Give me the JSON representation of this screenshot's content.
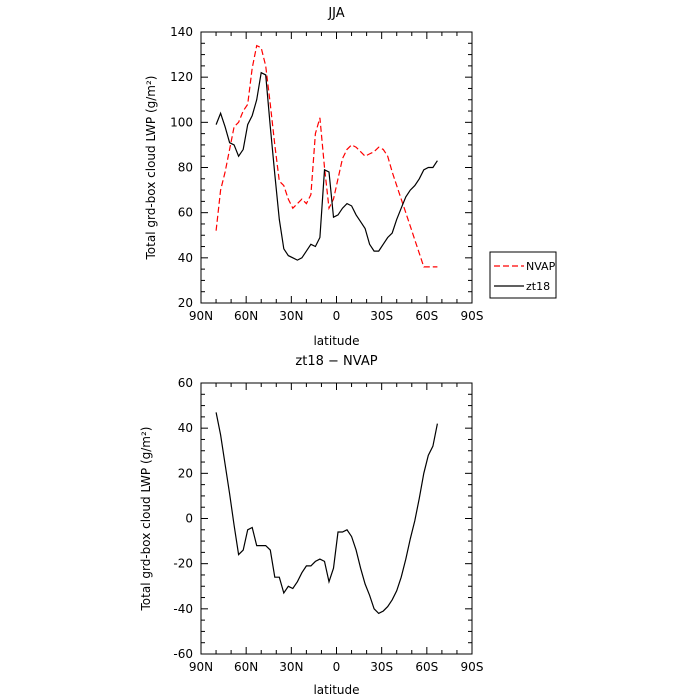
{
  "chart_data": [
    {
      "type": "line",
      "title": "JJA",
      "xlabel": "latitude",
      "ylabel": "Total grd-box cloud LWP (g/m²)",
      "xlim": [
        90,
        -90
      ],
      "ylim": [
        20,
        140
      ],
      "x_ticks": [
        90,
        60,
        30,
        0,
        -30,
        -60,
        -90
      ],
      "x_tick_labels": [
        "90N",
        "60N",
        "30N",
        "0",
        "30S",
        "60S",
        "90S"
      ],
      "y_ticks": [
        20,
        40,
        60,
        80,
        100,
        120,
        140
      ],
      "grid": false,
      "legend_position": "right-outside",
      "series": [
        {
          "name": "NVAP",
          "color": "#ff0000",
          "dash": "dashed",
          "x": [
            80,
            77,
            74,
            71,
            68,
            65,
            62,
            59,
            56,
            53,
            50,
            47,
            44,
            41,
            38,
            35,
            32,
            29,
            26,
            23,
            20,
            17,
            14,
            11,
            8,
            5,
            2,
            -1,
            -4,
            -7,
            -10,
            -13,
            -16,
            -19,
            -22,
            -25,
            -28,
            -31,
            -34,
            -37,
            -40,
            -43,
            -46,
            -49,
            -52,
            -55,
            -58,
            -61,
            -64,
            -67
          ],
          "y": [
            52,
            70,
            78,
            88,
            98,
            100,
            105,
            108,
            124,
            134,
            133,
            125,
            108,
            90,
            74,
            72,
            66,
            62,
            64,
            66,
            64,
            68,
            95,
            102,
            80,
            62,
            66,
            75,
            84,
            88,
            90,
            89,
            87,
            85,
            86,
            87,
            89,
            88,
            85,
            78,
            72,
            66,
            60,
            54,
            48,
            42,
            36,
            36,
            36,
            36
          ]
        },
        {
          "name": "zt18",
          "color": "#000000",
          "dash": "solid",
          "x": [
            80,
            77,
            74,
            71,
            68,
            65,
            62,
            59,
            56,
            53,
            50,
            47,
            44,
            41,
            38,
            35,
            32,
            29,
            26,
            23,
            20,
            17,
            14,
            11,
            8,
            5,
            2,
            -1,
            -4,
            -7,
            -10,
            -13,
            -16,
            -19,
            -22,
            -25,
            -28,
            -31,
            -34,
            -37,
            -40,
            -43,
            -46,
            -49,
            -52,
            -55,
            -58,
            -61,
            -64,
            -67
          ],
          "y": [
            99,
            104,
            98,
            91,
            90,
            85,
            88,
            99,
            103,
            110,
            122,
            121,
            98,
            77,
            57,
            44,
            41,
            40,
            39,
            40,
            43,
            46,
            45,
            49,
            79,
            78,
            58,
            59,
            62,
            64,
            63,
            59,
            56,
            53,
            46,
            43,
            43,
            46,
            49,
            51,
            57,
            62,
            67,
            70,
            72,
            75,
            79,
            80,
            80,
            83
          ]
        }
      ]
    },
    {
      "type": "line",
      "title": "zt18 − NVAP",
      "xlabel": "latitude",
      "ylabel": "Total grd-box cloud LWP (g/m²)",
      "xlim": [
        90,
        -90
      ],
      "ylim": [
        -60,
        60
      ],
      "x_ticks": [
        90,
        60,
        30,
        0,
        -30,
        -60,
        -90
      ],
      "x_tick_labels": [
        "90N",
        "60N",
        "30N",
        "0",
        "30S",
        "60S",
        "90S"
      ],
      "y_ticks": [
        -60,
        -40,
        -20,
        0,
        20,
        40,
        60
      ],
      "grid": false,
      "series": [
        {
          "color": "#000000",
          "dash": "solid",
          "x": [
            80,
            77,
            74,
            71,
            68,
            65,
            62,
            59,
            56,
            53,
            50,
            47,
            44,
            41,
            38,
            35,
            32,
            29,
            26,
            23,
            20,
            17,
            14,
            11,
            8,
            5,
            2,
            -1,
            -4,
            -7,
            -10,
            -13,
            -16,
            -19,
            -22,
            -25,
            -28,
            -31,
            -34,
            -37,
            -40,
            -43,
            -46,
            -49,
            -52,
            -55,
            -58,
            -61,
            -64,
            -67
          ],
          "y": [
            47,
            37,
            24,
            11,
            -3,
            -16,
            -14,
            -5,
            -4,
            -12,
            -12,
            -12,
            -14,
            -26,
            -26,
            -33,
            -30,
            -31,
            -28,
            -24,
            -21,
            -21,
            -19,
            -18,
            -19,
            -28,
            -22,
            -6,
            -6,
            -5,
            -8,
            -14,
            -22,
            -29,
            -34,
            -40,
            -42,
            -41,
            -39,
            -36,
            -32,
            -26,
            -18,
            -9,
            -1,
            9,
            20,
            28,
            32,
            42
          ]
        }
      ]
    }
  ]
}
